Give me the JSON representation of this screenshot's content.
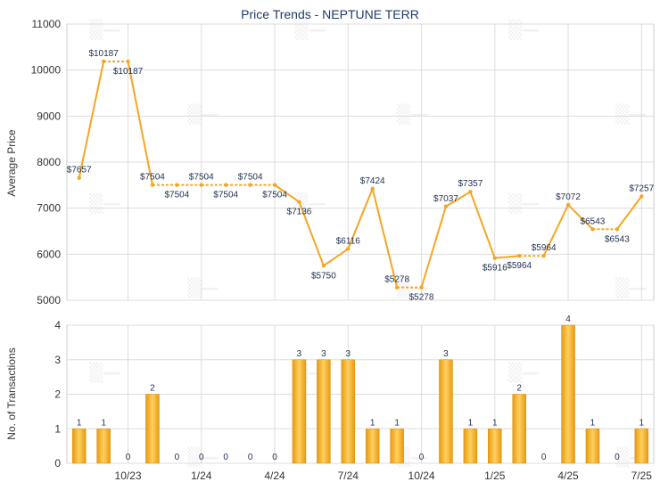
{
  "chart_data": {
    "title": "Price Trends - NEPTUNE TERR",
    "x_tick_labels": [
      "10/23",
      "1/24",
      "4/24",
      "7/24",
      "10/24",
      "1/25",
      "4/25",
      "7/25"
    ],
    "panels": [
      {
        "type": "line",
        "ylabel": "Average Price",
        "ylim": [
          5000,
          11000
        ],
        "yticks": [
          5000,
          6000,
          7000,
          8000,
          9000,
          10000,
          11000
        ],
        "color": "#f5a623",
        "points": [
          {
            "i": 0,
            "value": 7657,
            "label": "$7657"
          },
          {
            "i": 1,
            "value": 10187,
            "label": "$10187"
          },
          {
            "i": 2,
            "value": 10187,
            "label": "$10187"
          },
          {
            "i": 3,
            "value": 7504,
            "label": "$7504"
          },
          {
            "i": 4,
            "value": 7504,
            "label": "$7504"
          },
          {
            "i": 5,
            "value": 7504,
            "label": "$7504"
          },
          {
            "i": 6,
            "value": 7504,
            "label": "$7504"
          },
          {
            "i": 7,
            "value": 7504,
            "label": "$7504"
          },
          {
            "i": 8,
            "value": 7504,
            "label": "$7504"
          },
          {
            "i": 9,
            "value": 7136,
            "label": "$7136"
          },
          {
            "i": 10,
            "value": 5750,
            "label": "$5750"
          },
          {
            "i": 11,
            "value": 6116,
            "label": "$6116"
          },
          {
            "i": 12,
            "value": 7424,
            "label": "$7424"
          },
          {
            "i": 13,
            "value": 5278,
            "label": "$5278"
          },
          {
            "i": 14,
            "value": 5278,
            "label": "$5278"
          },
          {
            "i": 15,
            "value": 7037,
            "label": "$7037"
          },
          {
            "i": 16,
            "value": 7357,
            "label": "$7357"
          },
          {
            "i": 17,
            "value": 5916,
            "label": "$5916"
          },
          {
            "i": 18,
            "value": 5964,
            "label": "$5964"
          },
          {
            "i": 19,
            "value": 5964,
            "label": "$5964"
          },
          {
            "i": 20,
            "value": 7072,
            "label": "$7072"
          },
          {
            "i": 21,
            "value": 6543,
            "label": "$6543"
          },
          {
            "i": 22,
            "value": 6543,
            "label": "$6543"
          },
          {
            "i": 23,
            "value": 7257,
            "label": "$7257"
          }
        ]
      },
      {
        "type": "bar",
        "ylabel": "No. of Transactions",
        "ylim": [
          0,
          4
        ],
        "yticks": [
          0,
          1,
          2,
          3,
          4
        ],
        "color": "#f5a623",
        "values": [
          1,
          1,
          0,
          2,
          0,
          0,
          0,
          0,
          0,
          3,
          3,
          3,
          1,
          1,
          0,
          3,
          1,
          1,
          2,
          0,
          4,
          1,
          0,
          1
        ]
      }
    ]
  }
}
